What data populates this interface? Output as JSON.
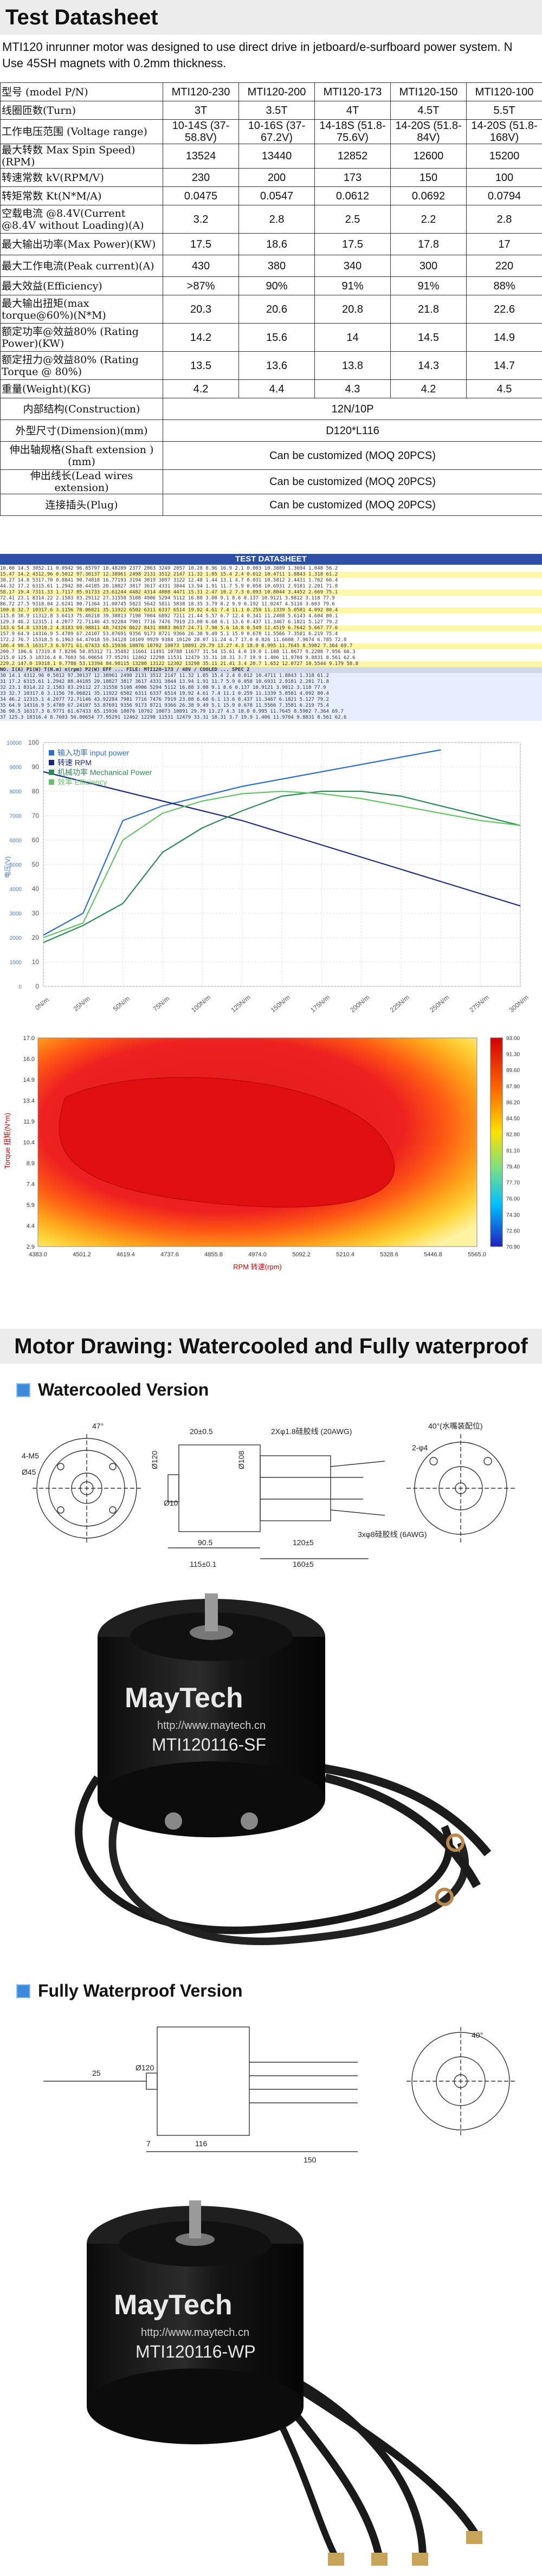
{
  "header": {
    "title": "Test Datasheet"
  },
  "intro": {
    "line1": "MTI120 inrunner motor was designed to use direct drive in jetboard/e-surfboard power system. N",
    "line2": "Use 45SH magnets with 0.2mm thickness."
  },
  "spec_table": {
    "columns": [
      "MTI120-230",
      "MTI120-200",
      "MTI120-173",
      "MTI120-150",
      "MTI120-100"
    ],
    "rows": [
      {
        "label": "型号 (model P/N)",
        "values": [
          "MTI120-230",
          "MTI120-200",
          "MTI120-173",
          "MTI120-150",
          "MTI120-100"
        ]
      },
      {
        "label": "线圈匝数(Turn)",
        "values": [
          "3T",
          "3.5T",
          "4T",
          "4.5T",
          "5.5T"
        ]
      },
      {
        "label": "工作电压范围 (Voltage range)",
        "values": [
          "10-14S (37-58.8V)",
          "10-16S (37-67.2V)",
          "14-18S (51.8-75.6V)",
          "14-20S (51.8-84V)",
          "14-20S (51.8-168V)"
        ]
      },
      {
        "label": "最大转数 Max Spin Speed)(RPM)",
        "values": [
          "13524",
          "13440",
          "12852",
          "12600",
          "15200"
        ]
      },
      {
        "label": "转速常数 kV(RPM/V)",
        "values": [
          "230",
          "200",
          "173",
          "150",
          "100"
        ]
      },
      {
        "label": "转矩常数 Kt(N*M/A)",
        "values": [
          "0.0475",
          "0.0547",
          "0.0612",
          "0.0692",
          "0.0794"
        ]
      },
      {
        "label": "空载电流 @8.4V(Current @8.4V without Loading)(A)",
        "values": [
          "3.2",
          "2.8",
          "2.5",
          "2.2",
          "2.8"
        ]
      },
      {
        "label": "最大输出功率(Max Power)(KW)",
        "values": [
          "17.5",
          "18.6",
          "17.5",
          "17.8",
          "17"
        ]
      },
      {
        "label": "最大工作电流(Peak current)(A)",
        "values": [
          "430",
          "380",
          "340",
          "300",
          "220"
        ]
      },
      {
        "label": "最大效益(Efficiency)",
        "values": [
          ">87%",
          "90%",
          "91%",
          "91%",
          "88%"
        ]
      },
      {
        "label": "最大输出扭矩(max torque@60%)(N*M)",
        "values": [
          "20.3",
          "20.6",
          "20.8",
          "21.8",
          "22.6"
        ]
      },
      {
        "label": "额定功率@效益80% (Rating Power)(KW)",
        "values": [
          "14.2",
          "15.6",
          "14",
          "14.5",
          "14.9"
        ]
      },
      {
        "label": "额定扭力@效益80% (Rating Torque @ 80%)",
        "values": [
          "13.5",
          "13.6",
          "13.8",
          "14.3",
          "14.7"
        ]
      },
      {
        "label": "重量(Weight)(KG)",
        "values": [
          "4.2",
          "4.4",
          "4.3",
          "4.2",
          "4.5"
        ]
      },
      {
        "label": "内部结构(Construction)",
        "span": "12N/10P"
      },
      {
        "label": "外型尺寸(Dimension)(mm)",
        "span": "D120*L116"
      },
      {
        "label": "伸出轴规格(Shaft extension )(mm)",
        "span": "Can be customized (MOQ 20PCS)"
      },
      {
        "label": "伸出线长(Lead wires extension)",
        "span": "Can be customized (MOQ 20PCS)"
      },
      {
        "label": "连接插头(Plug)",
        "span": "Can be customized (MOQ 20PCS)"
      }
    ]
  },
  "data_sheet": {
    "banner": "TEST DATASHEET",
    "rows": [
      "10.00  14.5  3052.11  0.0942   96.85797  10.48289  2377  2063  3249  2057  10.28  0.96  16.9  2.1   0.003   10.3889  1.3694  1.048   56.2",
      "15.47  14.2  4312.96  0.5012   97.30137  12.38961  2498  2131  3512  2147  11.32  1.05  15.4  2.4   0.012   10.4711  1.8843  1.318   61.2",
      "30.27  14.8  5317.70  0.8841   90.74818  16.77193  3194  3019  3897  3122  12.48  1.44  13.1  4.7   0.031   10.5812  2.4431  1.762   66.4",
      "44.32  17.2  6315.61  1.2942   88.44185  20.18827  3817  3617  4331  3844  13.94  1.91  11.7  5.9   0.058   10.6931  2.9181  2.201   71.8",
      "58.17  19.4  7311.33  1.7117   85.91733  23.61244  4482  4314  4808  4471  15.31  2.47  10.2  7.3   0.093   10.8044  3.4452  2.669   75.1",
      "72.41  23.1  8314.22  2.1583   83.29112  27.31558  5108  4906  5294  5112  16.88  3.08   9.1  8.6   0.137   10.9121  3.9812  3.118   77.9",
      "86.72  27.5  9318.04  2.6241   80.71364  31.08745  5823  5642  5811  5838  18.35  3.79   8.2  9.9   0.192   11.0247  4.5116  3.603   79.6",
      "100.8  32.7  10317.6  3.1156   78.06821  35.11922  6502  6311  6337  6514  19.92  4.61   7.4 11.1   0.259   11.1339  5.0581  4.092   80.4",
      "115.0  38.9  11312.8  3.6413   75.40218  39.38813  7198  7004  6892  7211  21.44  5.57   6.7 12.4   0.341   11.2408  5.6143  4.604   80.1",
      "129.3  46.2  12315.1  4.2077   72.71146  43.92284  7901  7716  7476  7919  23.08  6.68   6.1 13.6   0.437   11.3467  6.1821  5.127   79.2",
      "143.6  54.8  13318.2  4.8183   69.98811  48.74326  8622  8431  8083  8637  24.71  7.98   5.6 14.8   0.549   11.4519  6.7642  5.667   77.6",
      "157.9  64.9  14316.9  5.4789   67.24107  53.87691  9356  9173  8721  9366  26.38  9.49   5.1 15.9   0.678   11.5566  7.3581  6.219   75.4",
      "172.2  76.7  15318.5  6.1963   64.47018  59.34128  10109 9929  9384  10120 28.07 11.24   4.7 17.0   0.826   11.6608  7.9674  6.785   72.8",
      "186.4  90.5  16317.3  6.9771   61.67433  65.15936  10876 10702 10073 10891 29.79 13.27   4.3 18.0   0.995   11.7645  8.5902  7.364   69.7",
      "200.7 106.6  17319.8  7.8296   58.85312  71.35482  11661 11491 10788 11677 31.54 15.61   4.0 19.0   1.188   11.8677  9.2288  7.956   66.3",
      "215.0 125.3  18316.4  8.7603   56.00654  77.95291  12462 12298 11531 12479 33.31 18.31   3.7 19.9   1.406   11.9704  9.8831  8.561   62.6",
      "229.2 147.0  19318.1  9.7786   53.13394  84.98115  13280 13122 12302 13298 35.11 21.41   3.4 20.7   1.652   12.0727 10.5544  9.179   58.8",
      "NO.  I(A)   P1(W)    T(N.m)   n(rpm)     P2(W)      EFF   ...   FILE: MTI120-173 / 48V / COOLED  ...  SPEC 2",
      "30   14.1  4312.96  0.5012   97.30137  12.38961  2498  2131  3512  2147  11.32  1.05  15.4  2.4   0.012   10.4711  1.8843  1.318   61.2",
      "31   17.2  6315.61  1.2942   88.44185  20.18827  3817  3617  4331  3844  13.94  1.91  11.7  5.9   0.058   10.6931  2.9181  2.201   71.8",
      "32   23.1  8314.22  2.1583   83.29112  27.31558  5108  4906  5294  5112  16.88  3.08   9.1  8.6   0.137   10.9121  3.9812  3.118   77.9",
      "33   32.7  10317.6  3.1156   78.06821  35.11922  6502  6311  6337  6514  19.92  4.61   7.4 11.1   0.259   11.1339  5.0581  4.092   80.4",
      "34   46.2  12315.1  4.2077   72.71146  43.92284  7901  7716  7476  7919  23.08  6.68   6.1 13.6   0.437   11.3467  6.1821  5.127   79.2",
      "35   64.9  14316.9  5.4789   67.24107  53.87691  9356  9173  8721  9366  26.38  9.49   5.1 15.9   0.678   11.5566  7.3581  6.219   75.4",
      "36   90.5  16317.3  6.9771   61.67433  65.15936  10876 10702 10073 10891 29.79 13.27   4.3 18.0   0.995   11.7645  8.5902  7.364   69.7",
      "37  125.3  18316.4  8.7603   56.00654  77.95291  12462 12298 11531 12479 33.31 18.31   3.7 19.9   1.406   11.9704  9.8831  8.561   62.6"
    ]
  },
  "chart_data": [
    {
      "type": "line",
      "title": "",
      "legend": [
        "输入功率 input power",
        "转速 RPM",
        "机械功率 Mechanical Power",
        "效率 Efficiency"
      ],
      "legend_position": "top-left",
      "x": [
        0,
        25,
        50,
        75,
        100,
        125,
        150,
        175,
        200,
        225,
        250,
        275,
        300
      ],
      "x_ticks": [
        "0N/m",
        "25N/m",
        "50N/m",
        "75N/m",
        "100N/m",
        "125N/m",
        "150N/m",
        "175N/m",
        "200N/m",
        "225N/m",
        "250N/m",
        "275N/m",
        "300N/m"
      ],
      "y_left": {
        "label": "电压(V)",
        "ticks": [
          "0",
          "1000",
          "2000",
          "3000",
          "4000",
          "5000",
          "6000",
          "7000",
          "8000",
          "9000",
          "10000"
        ]
      },
      "y_right": {
        "label": "",
        "ticks": [
          "0",
          "10",
          "20",
          "30",
          "40",
          "50",
          "60",
          "70",
          "80",
          "90",
          "100"
        ],
        "ylim": [
          0,
          100
        ]
      },
      "series": [
        {
          "name": "输入功率 input power",
          "color": "#2f6fc6",
          "values": [
            21,
            30,
            68,
            74,
            78,
            82,
            85,
            88,
            91,
            94,
            97,
            null,
            null
          ]
        },
        {
          "name": "转速 RPM",
          "color": "#1a2a7a",
          "values": [
            88,
            84,
            80,
            76,
            72,
            68,
            63,
            58,
            53,
            48,
            43,
            38,
            33
          ]
        },
        {
          "name": "机械功率 Mechanical Power",
          "color": "#2e8b57",
          "values": [
            18,
            25,
            34,
            55,
            65,
            72,
            78,
            80,
            80,
            78,
            74,
            70,
            66
          ]
        },
        {
          "name": "效率 Efficiency",
          "color": "#66c266",
          "values": [
            20,
            26,
            60,
            71,
            76,
            79,
            80,
            79,
            77,
            74,
            71,
            68,
            66
          ]
        }
      ],
      "grid": true
    },
    {
      "type": "heatmap",
      "title": "",
      "xlabel": "RPM 转速(rpm)",
      "ylabel": "Torque 扭矩(N*m)",
      "x_ticks": [
        "4383.0",
        "4501.2",
        "4619.4",
        "4737.6",
        "4855.8",
        "4974.0",
        "5092.2",
        "5210.4",
        "5328.6",
        "5446.8",
        "5565.0"
      ],
      "y_ticks": [
        "2.9",
        "4.4",
        "5.9",
        "7.4",
        "8.9",
        "10.4",
        "11.9",
        "13.4",
        "14.9",
        "16.0",
        "17.0"
      ],
      "colorbar": [
        "93.00",
        "91.30",
        "89.60",
        "87.90",
        "86.20",
        "84.50",
        "82.80",
        "81.10",
        "79.40",
        "77.70",
        "76.00",
        "74.30",
        "72.60",
        "70.90"
      ],
      "zlim": [
        70.9,
        93.0
      ]
    }
  ],
  "drawing_section": {
    "title": "Motor Drawing: Watercooled and Fully waterproof",
    "watercooled": {
      "title": "Watercooled Version",
      "dims": [
        "47°",
        "4-M5",
        "Ø45",
        "20±0.5",
        "2Xφ1.8硅胶线 (20AWG)",
        "Ø120",
        "Ø108",
        "Ø10",
        "90.5",
        "115±0.1",
        "120±5",
        "160±5",
        "3xφ8硅胶线 (6AWG)",
        "40°",
        "2-φ4",
        "40°(水嘴装配位)"
      ],
      "label": "MTI120116-SF",
      "brand": "MayTech",
      "url": "http://www.maytech.cn"
    },
    "waterproof": {
      "title": "Fully Waterproof Version",
      "dims": [
        "Ø120",
        "116",
        "7",
        "25",
        "150",
        "40°"
      ],
      "label": "MTI120116-WP",
      "brand": "MayTech",
      "url": "http://www.maytech.cn"
    }
  }
}
